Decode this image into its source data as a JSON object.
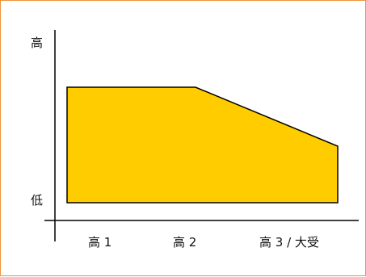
{
  "colors": {
    "frame_border": "#f0943c",
    "fill": "#ffcc00",
    "outline": "#000000",
    "axis": "#000000"
  },
  "y_axis": {
    "top_label": "高",
    "bottom_label": "低"
  },
  "x_axis": {
    "tick_labels": [
      "高 1",
      "高 2",
      "高 3 / 大受"
    ]
  },
  "shape": {
    "description_points": [
      {
        "x_label": "高 1",
        "level": "high"
      },
      {
        "x_label": "高 2",
        "level": "high"
      },
      {
        "x_label": "高 3 / 大受",
        "level": "mid"
      }
    ]
  }
}
